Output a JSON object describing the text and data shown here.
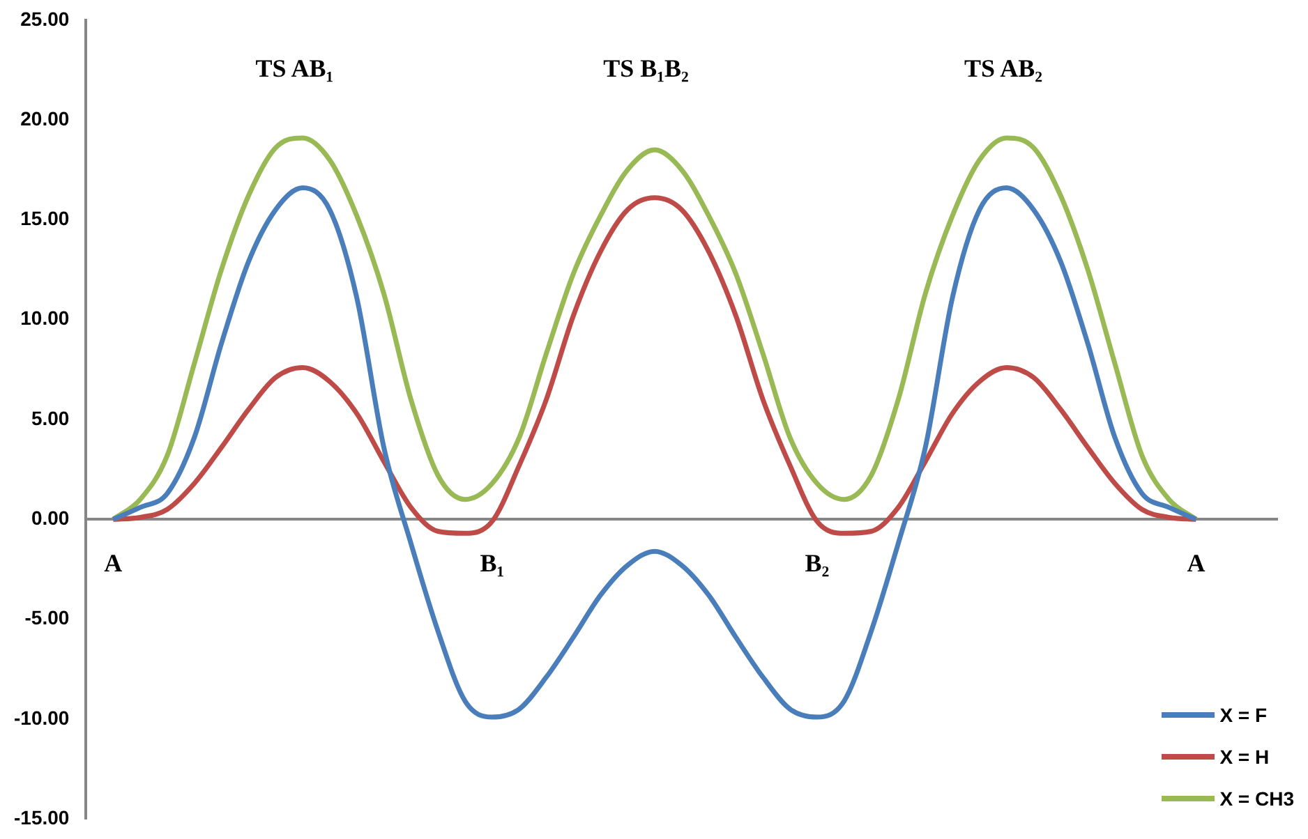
{
  "chart_data": {
    "type": "line",
    "categories": [
      null,
      "A",
      null,
      null,
      null,
      null,
      null,
      null,
      null,
      null,
      null,
      null,
      null,
      null,
      null,
      "B₁",
      null,
      null,
      null,
      null,
      null,
      null,
      null,
      null,
      null,
      null,
      null,
      "B₂",
      null,
      null,
      null,
      null,
      null,
      null,
      null,
      null,
      null,
      null,
      null,
      null,
      null,
      "A",
      null,
      null,
      null
    ],
    "series": [
      {
        "name": "X = F",
        "color": "#4a7ebb",
        "values": [
          null,
          0,
          0.6,
          1.3,
          4.1,
          8.8,
          12.9,
          15.5,
          16.6,
          15.5,
          11.1,
          3.6,
          -1.2,
          -5.6,
          -9.1,
          -9.9,
          -9.5,
          -7.9,
          -5.9,
          -3.8,
          -2.3,
          -1.6,
          -2.3,
          -3.8,
          -5.9,
          -7.9,
          -9.5,
          -9.9,
          -9.1,
          -5.6,
          -1.2,
          3.6,
          11.1,
          15.5,
          16.6,
          15.5,
          12.9,
          8.8,
          4.1,
          1.3,
          0.6,
          0,
          null,
          null,
          null
        ]
      },
      {
        "name": "X = H",
        "color": "#be4b48",
        "values": [
          null,
          0,
          0.1,
          0.5,
          1.8,
          3.6,
          5.5,
          7.1,
          7.6,
          6.9,
          5.3,
          2.9,
          0.6,
          -0.6,
          -0.7,
          -0.1,
          2.7,
          6.0,
          10.2,
          13.4,
          15.5,
          16.1,
          15.5,
          13.4,
          10.2,
          6.0,
          2.7,
          -0.1,
          -0.7,
          -0.6,
          0.6,
          2.9,
          5.3,
          6.9,
          7.6,
          7.1,
          5.5,
          3.6,
          1.8,
          0.5,
          0.1,
          0,
          null,
          null,
          null
        ]
      },
      {
        "name": "X = CH3",
        "color": "#98b954",
        "values": [
          null,
          0,
          1.0,
          3.2,
          7.8,
          12.5,
          16.2,
          18.6,
          19.1,
          18.0,
          15.2,
          11.3,
          6.0,
          2.2,
          1.0,
          1.8,
          4.1,
          8.3,
          12.3,
          15.2,
          17.5,
          18.5,
          17.5,
          15.2,
          12.3,
          8.3,
          4.1,
          1.8,
          1.0,
          2.2,
          6.0,
          11.3,
          15.2,
          18.0,
          19.1,
          18.6,
          16.2,
          12.5,
          7.8,
          3.2,
          1.0,
          0,
          null,
          null,
          null
        ]
      }
    ],
    "ylim": [
      -15,
      25
    ],
    "yticks": [
      {
        "value": -15,
        "label": "-15.00"
      },
      {
        "value": -10,
        "label": "-10.00"
      },
      {
        "value": -5,
        "label": "-5.00"
      },
      {
        "value": 0,
        "label": "0.00"
      },
      {
        "value": 5,
        "label": "5.00"
      },
      {
        "value": 10,
        "label": "10.00"
      },
      {
        "value": 15,
        "label": "15.00"
      },
      {
        "value": 20,
        "label": "20.00"
      },
      {
        "value": 25,
        "label": "25.00"
      }
    ],
    "annotations": [
      "TS AB₁",
      "TS B₁B₂",
      "TS AB₂"
    ],
    "legend": "bottom right",
    "grid": false,
    "marker": "none",
    "line_style": "solid"
  }
}
